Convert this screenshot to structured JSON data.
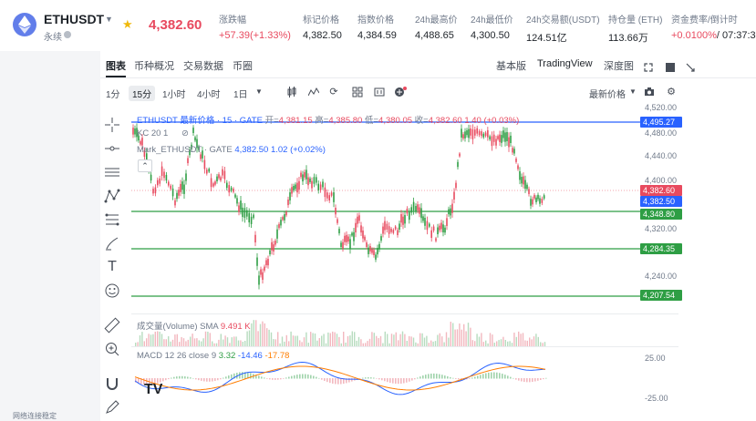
{
  "header": {
    "symbol": "ETHUSDT",
    "contract_type": "永续",
    "last_price": "4,382.60",
    "stats": [
      {
        "label": "涨跌幅",
        "value": "+57.39(+1.33%)",
        "tone": "red"
      },
      {
        "label": "标记价格",
        "value": "4,382.50",
        "tone": "normal"
      },
      {
        "label": "指数价格",
        "value": "4,384.59",
        "tone": "normal"
      },
      {
        "label": "24h最高价",
        "value": "4,488.65",
        "tone": "normal"
      },
      {
        "label": "24h最低价",
        "value": "4,300.50",
        "tone": "normal"
      },
      {
        "label": "24h交易额(USDT)",
        "value": "124.51亿",
        "tone": "normal"
      },
      {
        "label": "持仓量 (ETH)",
        "value": "113.66万",
        "tone": "normal"
      },
      {
        "label": "资金费率/倒计时",
        "value_rate": "+0.0100%",
        "value_time": "/ 07:37:33",
        "tone": "red"
      }
    ]
  },
  "panel": {
    "tabs": [
      "图表",
      "币种概况",
      "交易数据",
      "币圈"
    ],
    "view_modes": [
      "基本版",
      "TradingView",
      "深度图"
    ],
    "active_view": "TradingView"
  },
  "toolbar": {
    "timeframes": [
      "1分",
      "15分",
      "1小时",
      "4小时",
      "1日"
    ],
    "active_timeframe": "15分",
    "price_type": "最新价格"
  },
  "chart": {
    "legend_main": {
      "name": "ETHUSDT 最新价格 · 15 · GATE",
      "open_label": "开=",
      "open": "4,381.15",
      "high_label": "高=",
      "high": "4,385.80",
      "low_label": "低=",
      "low": "4,380.05",
      "close_label": "收=",
      "close": "4,382.60",
      "change": "1.40 (+0.03%)"
    },
    "legend_kc": "KC 20 1",
    "legend_mark": {
      "name": "Mark_ETHUSDT · GATE",
      "value": "4,382.50",
      "change": "1.02 (+0.02%)"
    },
    "volume_legend": {
      "name": "成交量(Volume) SMA",
      "value": "9.491 K"
    },
    "macd_legend": {
      "name": "MACD 12 26 close 9",
      "v1": "3.32",
      "v2": "-14.46",
      "v3": "-17.78"
    },
    "price_axis": [
      "4,520.00",
      "4,480.00",
      "4,440.00",
      "4,400.00",
      "4,320.00",
      "4,240.00"
    ],
    "price_tags": [
      {
        "value": "4,495.27",
        "color": "#2962ff"
      },
      {
        "value": "4,382.60",
        "color": "#e84a5f"
      },
      {
        "value": "4,382.50",
        "color": "#2962ff"
      },
      {
        "value": "4,348.80",
        "color": "#2e9e44"
      },
      {
        "value": "4,284.35",
        "color": "#2e9e44"
      },
      {
        "value": "4,207.54",
        "color": "#2e9e44"
      }
    ],
    "macd_axis": [
      "25.00",
      "-25.00"
    ]
  },
  "footer": {
    "network_status": "网络连接稳定"
  },
  "colors": {
    "up": "#2e9e44",
    "down": "#e84a5f",
    "accent": "#2962ff"
  }
}
